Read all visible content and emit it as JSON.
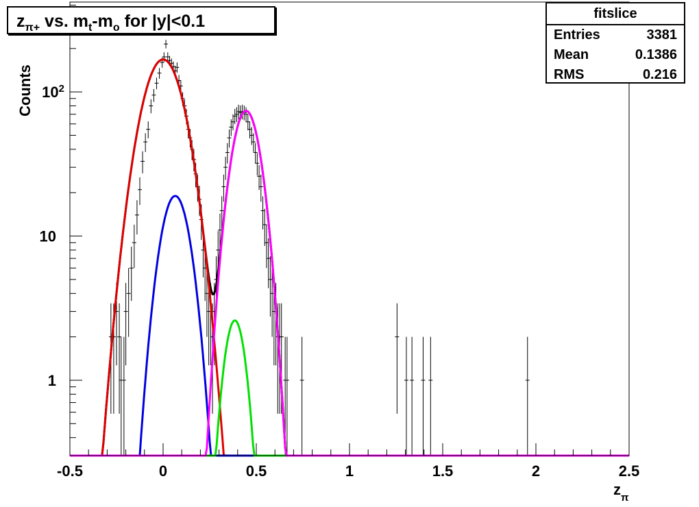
{
  "title": {
    "z": "z",
    "sub": "π+",
    "vs": " vs. m",
    "t_sub": "t",
    "dash_m": "-m",
    "o_sub": "o",
    "tail": " for |y|<0.1"
  },
  "stats": {
    "name": "fitslice",
    "rows": [
      {
        "label": "Entries",
        "value": "3381"
      },
      {
        "label": "Mean",
        "value": "0.1386"
      },
      {
        "label": "RMS",
        "value": "0.216"
      }
    ]
  },
  "colors": {
    "total_fit": "#000000",
    "pion": "#e00000",
    "second": "#0000e0",
    "third": "#00e000",
    "kaon": "#ff00ff",
    "frame": "#000000"
  },
  "chart_data": {
    "type": "scatter",
    "log_y": true,
    "xlabel": "z",
    "xlabel_sub": "π",
    "ylabel": "Counts",
    "xlim": [
      -0.5,
      2.5
    ],
    "ylim": [
      0.3,
      420
    ],
    "x_ticks": [
      "-0.5",
      "0",
      "0.5",
      "1",
      "1.5",
      "2",
      "2.5"
    ],
    "x_tick_values": [
      -0.5,
      0,
      0.5,
      1,
      1.5,
      2,
      2.5
    ],
    "y_ticks": [
      {
        "value": 1,
        "label": "1"
      },
      {
        "value": 10,
        "label": "10"
      },
      {
        "value": 100,
        "label": "10",
        "sup": "2"
      }
    ],
    "grid": false,
    "legend": "none",
    "data_points": [
      {
        "x": -0.28,
        "y": 2
      },
      {
        "x": -0.265,
        "y": 2
      },
      {
        "x": -0.25,
        "y": 3
      },
      {
        "x": -0.235,
        "y": 2
      },
      {
        "x": -0.225,
        "y": 1
      },
      {
        "x": -0.21,
        "y": 1
      },
      {
        "x": -0.2,
        "y": 3
      },
      {
        "x": -0.185,
        "y": 4
      },
      {
        "x": -0.17,
        "y": 6
      },
      {
        "x": -0.155,
        "y": 9
      },
      {
        "x": -0.14,
        "y": 14
      },
      {
        "x": -0.125,
        "y": 21
      },
      {
        "x": -0.11,
        "y": 33
      },
      {
        "x": -0.095,
        "y": 45
      },
      {
        "x": -0.08,
        "y": 55
      },
      {
        "x": -0.065,
        "y": 80
      },
      {
        "x": -0.05,
        "y": 95
      },
      {
        "x": -0.035,
        "y": 115
      },
      {
        "x": -0.02,
        "y": 135
      },
      {
        "x": -0.005,
        "y": 160
      },
      {
        "x": 0.005,
        "y": 175
      },
      {
        "x": 0.015,
        "y": 215
      },
      {
        "x": 0.025,
        "y": 175
      },
      {
        "x": 0.035,
        "y": 165
      },
      {
        "x": 0.045,
        "y": 158
      },
      {
        "x": 0.055,
        "y": 150
      },
      {
        "x": 0.065,
        "y": 140
      },
      {
        "x": 0.075,
        "y": 148
      },
      {
        "x": 0.085,
        "y": 120
      },
      {
        "x": 0.095,
        "y": 110
      },
      {
        "x": 0.105,
        "y": 90
      },
      {
        "x": 0.115,
        "y": 80
      },
      {
        "x": 0.125,
        "y": 68
      },
      {
        "x": 0.135,
        "y": 55
      },
      {
        "x": 0.145,
        "y": 48
      },
      {
        "x": 0.155,
        "y": 40
      },
      {
        "x": 0.165,
        "y": 34
      },
      {
        "x": 0.175,
        "y": 27
      },
      {
        "x": 0.185,
        "y": 22
      },
      {
        "x": 0.195,
        "y": 18
      },
      {
        "x": 0.205,
        "y": 13
      },
      {
        "x": 0.215,
        "y": 8
      },
      {
        "x": 0.225,
        "y": 6
      },
      {
        "x": 0.235,
        "y": 4
      },
      {
        "x": 0.245,
        "y": 3
      },
      {
        "x": 0.255,
        "y": 3
      },
      {
        "x": 0.265,
        "y": 2
      },
      {
        "x": 0.275,
        "y": 3
      },
      {
        "x": 0.285,
        "y": 5
      },
      {
        "x": 0.295,
        "y": 8
      },
      {
        "x": 0.305,
        "y": 11
      },
      {
        "x": 0.315,
        "y": 15
      },
      {
        "x": 0.325,
        "y": 22
      },
      {
        "x": 0.335,
        "y": 30
      },
      {
        "x": 0.345,
        "y": 38
      },
      {
        "x": 0.355,
        "y": 48
      },
      {
        "x": 0.365,
        "y": 57
      },
      {
        "x": 0.375,
        "y": 62
      },
      {
        "x": 0.385,
        "y": 68
      },
      {
        "x": 0.395,
        "y": 70
      },
      {
        "x": 0.405,
        "y": 73
      },
      {
        "x": 0.415,
        "y": 72
      },
      {
        "x": 0.425,
        "y": 73
      },
      {
        "x": 0.435,
        "y": 72
      },
      {
        "x": 0.445,
        "y": 70
      },
      {
        "x": 0.455,
        "y": 62
      },
      {
        "x": 0.465,
        "y": 55
      },
      {
        "x": 0.475,
        "y": 50
      },
      {
        "x": 0.485,
        "y": 45
      },
      {
        "x": 0.495,
        "y": 38
      },
      {
        "x": 0.505,
        "y": 32
      },
      {
        "x": 0.515,
        "y": 26
      },
      {
        "x": 0.525,
        "y": 22
      },
      {
        "x": 0.535,
        "y": 15
      },
      {
        "x": 0.545,
        "y": 12
      },
      {
        "x": 0.555,
        "y": 9
      },
      {
        "x": 0.565,
        "y": 7
      },
      {
        "x": 0.575,
        "y": 5
      },
      {
        "x": 0.585,
        "y": 4
      },
      {
        "x": 0.595,
        "y": 3
      },
      {
        "x": 0.605,
        "y": 3
      },
      {
        "x": 0.615,
        "y": 2
      },
      {
        "x": 0.625,
        "y": 2
      },
      {
        "x": 0.635,
        "y": 2
      },
      {
        "x": 0.655,
        "y": 1
      },
      {
        "x": 0.665,
        "y": 1
      },
      {
        "x": 0.745,
        "y": 1
      },
      {
        "x": 1.255,
        "y": 2
      },
      {
        "x": 1.305,
        "y": 1
      },
      {
        "x": 1.335,
        "y": 1
      },
      {
        "x": 1.395,
        "y": 1
      },
      {
        "x": 1.435,
        "y": 1
      },
      {
        "x": 1.955,
        "y": 1
      }
    ],
    "series": [
      {
        "color_key": "total_fit",
        "components": [
          {
            "amp": 168,
            "mean": 0.0,
            "sigma": 0.0915
          },
          {
            "amp": 74,
            "mean": 0.445,
            "sigma": 0.064
          }
        ]
      },
      {
        "color_key": "pion",
        "components": [
          {
            "amp": 168,
            "mean": 0.0,
            "sigma": 0.0915
          }
        ]
      },
      {
        "color_key": "second",
        "components": [
          {
            "amp": 19,
            "mean": 0.065,
            "sigma": 0.066
          }
        ]
      },
      {
        "color_key": "third",
        "components": [
          {
            "amp": 2.6,
            "mean": 0.385,
            "sigma": 0.049
          }
        ]
      },
      {
        "color_key": "kaon",
        "components": [
          {
            "amp": 74,
            "mean": 0.445,
            "sigma": 0.064
          }
        ]
      }
    ]
  }
}
